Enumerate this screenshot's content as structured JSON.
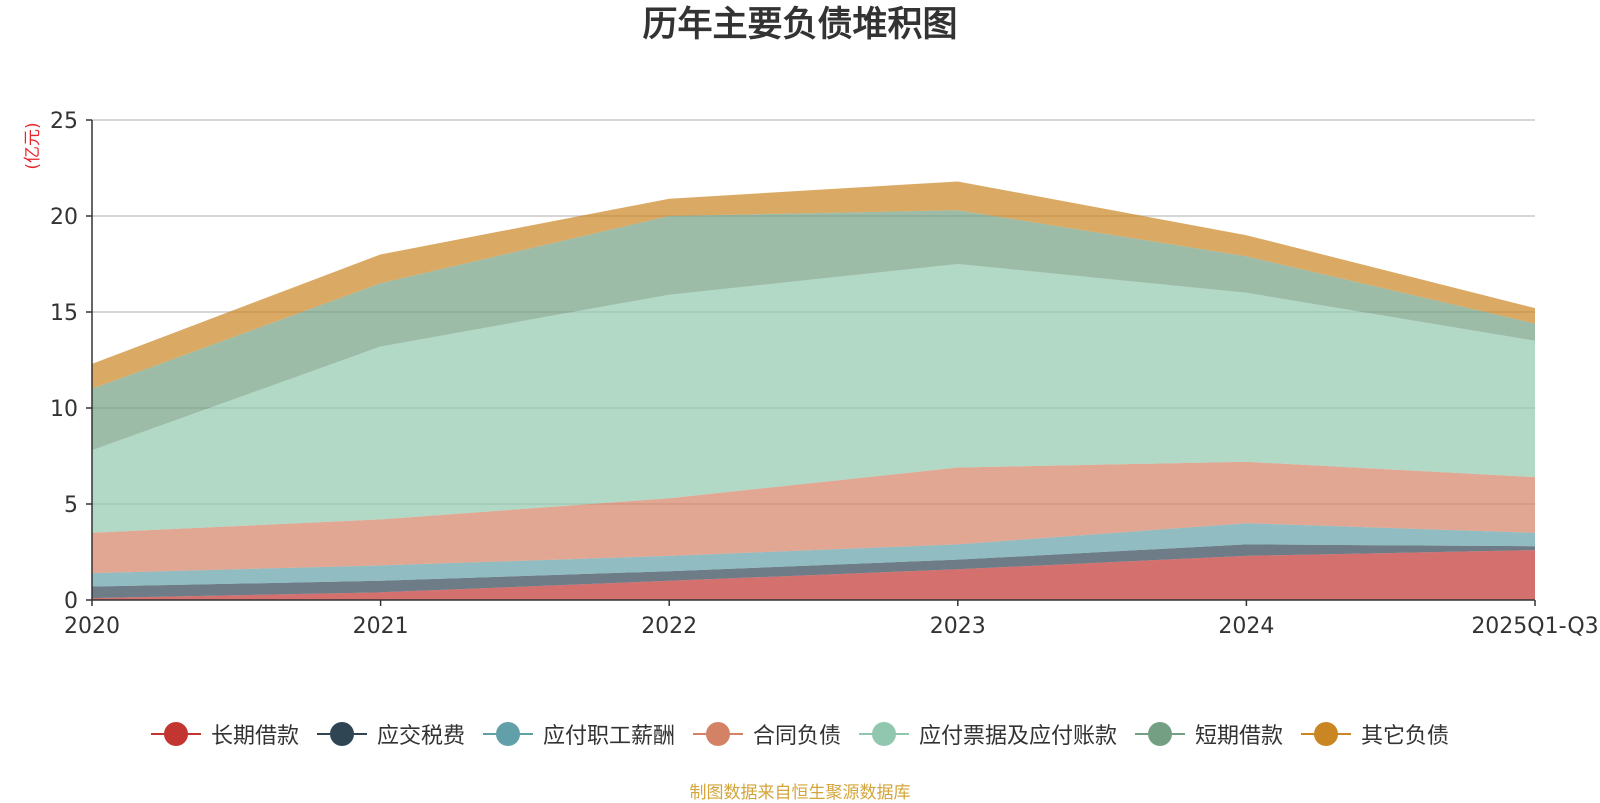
{
  "chart_data": {
    "type": "area",
    "title": "历年主要负债堆积图",
    "ylabel": "(亿元)",
    "xlabel": "",
    "categories": [
      "2020",
      "2021",
      "2022",
      "2023",
      "2024",
      "2025Q1-Q3"
    ],
    "ylim": [
      0,
      25
    ],
    "yticks": [
      0,
      5,
      10,
      15,
      20,
      25
    ],
    "stacked": true,
    "grid": true,
    "legend_position": "bottom",
    "series": [
      {
        "name": "长期借款",
        "color": "#c23531",
        "values": [
          0.1,
          0.4,
          1.0,
          1.6,
          2.3,
          2.6
        ]
      },
      {
        "name": "应交税费",
        "color": "#2f4554",
        "values": [
          0.6,
          0.6,
          0.5,
          0.5,
          0.6,
          0.2
        ]
      },
      {
        "name": "应付职工薪酬",
        "color": "#61a0a8",
        "values": [
          0.7,
          0.8,
          0.8,
          0.8,
          1.1,
          0.7
        ]
      },
      {
        "name": "合同负债",
        "color": "#d48265",
        "values": [
          2.1,
          2.4,
          3.0,
          4.0,
          3.2,
          2.9
        ]
      },
      {
        "name": "应付票据及应付账款",
        "color": "#91c7ae",
        "values": [
          4.3,
          9.0,
          10.6,
          10.6,
          8.8,
          7.1
        ]
      },
      {
        "name": "短期借款",
        "color": "#749f83",
        "values": [
          3.2,
          3.3,
          4.1,
          2.8,
          1.9,
          0.9
        ]
      },
      {
        "name": "其它负债",
        "color": "#ca8622",
        "values": [
          1.3,
          1.5,
          0.9,
          1.5,
          1.1,
          0.8
        ]
      }
    ]
  },
  "footer": {
    "source": "制图数据来自恒生聚源数据库"
  }
}
